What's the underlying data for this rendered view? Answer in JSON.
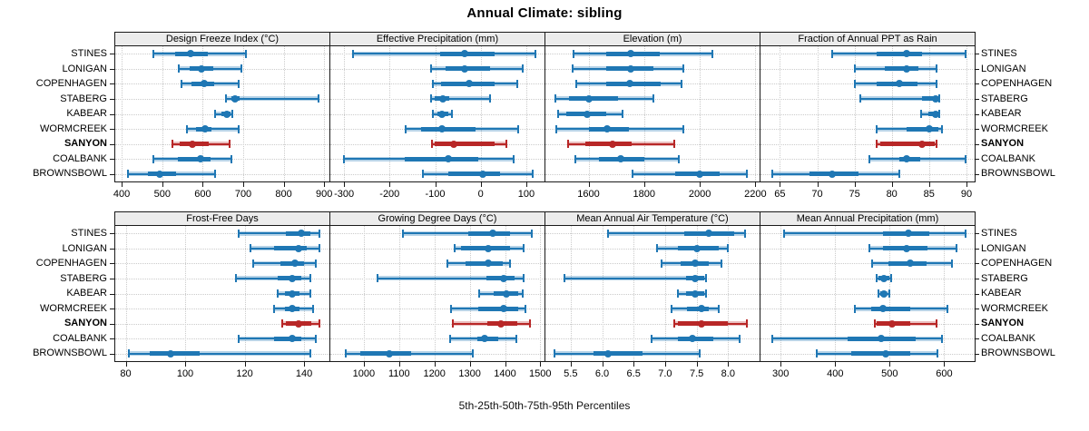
{
  "title": "Annual Climate: sibling",
  "caption": "5th-25th-50th-75th-95th Percentiles",
  "sites": [
    "STINES",
    "LONIGAN",
    "COPENHAGEN",
    "STABERG",
    "KABEAR",
    "WORMCREEK",
    "SANYON",
    "COALBANK",
    "BROWNSBOWL"
  ],
  "highlight_site": "SANYON",
  "colors": {
    "series": "#1f77b4",
    "series_band": "rgba(31,119,180,0.32)",
    "highlight": "#b82727",
    "highlight_band": "rgba(184,39,39,0.30)",
    "grid": "#cbcbcb",
    "panel_border": "#1a1a1a",
    "header_bg": "#ececec"
  },
  "chart_data": {
    "type": "dotplot-percentiles",
    "percentiles": [
      5,
      25,
      50,
      75,
      95
    ],
    "layout": {
      "rows": 2,
      "cols": 4
    },
    "note": "values = per site [p5,p25,p50,p75,p95] in site order",
    "panels": [
      {
        "title": "Design Freeze Index (°C)",
        "row": 0,
        "col": 0,
        "xlim": [
          384,
          913
        ],
        "ticks": [
          400,
          500,
          600,
          700,
          800,
          900
        ],
        "tick_labels": [
          "400",
          "500",
          "600",
          "700",
          "800",
          "900"
        ],
        "values": [
          [
            478,
            531,
            570,
            612,
            706
          ],
          [
            540,
            568,
            598,
            625,
            695
          ],
          [
            548,
            573,
            604,
            628,
            688
          ],
          [
            658,
            670,
            681,
            692,
            885
          ],
          [
            630,
            646,
            659,
            668,
            674
          ],
          [
            562,
            583,
            605,
            622,
            688
          ],
          [
            525,
            543,
            575,
            615,
            666
          ],
          [
            478,
            538,
            594,
            620,
            670
          ],
          [
            415,
            464,
            494,
            534,
            631
          ]
        ]
      },
      {
        "title": "Effective Precipitation (mm)",
        "row": 0,
        "col": 1,
        "xlim": [
          -330,
          140
        ],
        "ticks": [
          -300,
          -200,
          -100,
          0,
          100
        ],
        "tick_labels": [
          "-300",
          "-200",
          "-100",
          "0",
          "100"
        ],
        "values": [
          [
            -280,
            -90,
            -35,
            30,
            120
          ],
          [
            -108,
            -78,
            -35,
            20,
            93
          ],
          [
            -105,
            -88,
            -26,
            30,
            80
          ],
          [
            -108,
            -100,
            -83,
            -69,
            20
          ],
          [
            -105,
            -95,
            -85,
            -72,
            -63
          ],
          [
            -165,
            -130,
            -85,
            -12,
            83
          ],
          [
            -107,
            -100,
            -60,
            30,
            57
          ],
          [
            -300,
            -166,
            -71,
            -5,
            73
          ],
          [
            -127,
            -72,
            4,
            42,
            115
          ]
        ]
      },
      {
        "title": "Elevation (m)",
        "row": 0,
        "col": 2,
        "xlim": [
          1445,
          2215
        ],
        "ticks": [
          1600,
          1800,
          2000,
          2200
        ],
        "tick_labels": [
          "1600",
          "1800",
          "2000",
          "2200"
        ],
        "values": [
          [
            1546,
            1663,
            1753,
            1857,
            2044
          ],
          [
            1543,
            1663,
            1753,
            1833,
            1942
          ],
          [
            1556,
            1663,
            1749,
            1858,
            1934
          ],
          [
            1481,
            1530,
            1600,
            1707,
            1833
          ],
          [
            1492,
            1521,
            1595,
            1663,
            1721
          ],
          [
            1485,
            1603,
            1666,
            1745,
            1942
          ],
          [
            1525,
            1587,
            1685,
            1754,
            1907
          ],
          [
            1552,
            1638,
            1715,
            1800,
            1926
          ],
          [
            1758,
            1913,
            2000,
            2070,
            2168
          ]
        ]
      },
      {
        "title": "Fraction of Annual PPT as Rain",
        "row": 0,
        "col": 3,
        "xlim": [
          62.4,
          91.1
        ],
        "ticks": [
          65,
          70,
          75,
          80,
          85,
          90
        ],
        "tick_labels": [
          "65",
          "70",
          "75",
          "80",
          "85",
          "90"
        ],
        "values": [
          [
            72,
            78,
            82,
            84,
            89.9
          ],
          [
            75,
            79,
            82,
            83.5,
            86
          ],
          [
            75,
            78,
            81,
            83.5,
            86
          ],
          [
            75.8,
            84,
            85.9,
            86.2,
            86.4
          ],
          [
            83.9,
            84.9,
            85.9,
            86.2,
            86.4
          ],
          [
            78,
            82,
            85,
            86.2,
            86.7
          ],
          [
            78,
            78.5,
            84,
            85.8,
            86
          ],
          [
            77,
            81,
            82,
            83.8,
            89.9
          ],
          [
            64,
            69,
            72,
            75.5,
            81
          ]
        ]
      },
      {
        "title": "Frost-Free Days",
        "row": 1,
        "col": 0,
        "xlim": [
          76.5,
          148.5
        ],
        "ticks": [
          80,
          100,
          120,
          140
        ],
        "tick_labels": [
          "80",
          "100",
          "120",
          "140"
        ],
        "values": [
          [
            118,
            134,
            139,
            142,
            145
          ],
          [
            122,
            130,
            138,
            141,
            145
          ],
          [
            123,
            132,
            137,
            140,
            144
          ],
          [
            117,
            131,
            136,
            139,
            142
          ],
          [
            131,
            133.5,
            136,
            138.5,
            142
          ],
          [
            130,
            133.5,
            136,
            138.5,
            143
          ],
          [
            132.5,
            134,
            138,
            142.5,
            145
          ],
          [
            118,
            130,
            136,
            139,
            144
          ],
          [
            81,
            88,
            95,
            105,
            142
          ]
        ]
      },
      {
        "title": "Growing Degree Days (°C)",
        "row": 1,
        "col": 1,
        "xlim": [
          905,
          1512
        ],
        "ticks": [
          1000,
          1100,
          1200,
          1300,
          1400,
          1500
        ],
        "tick_labels": [
          "1000",
          "1100",
          "1200",
          "1300",
          "1400",
          "1500"
        ],
        "values": [
          [
            1110,
            1295,
            1365,
            1415,
            1477
          ],
          [
            1258,
            1275,
            1353,
            1414,
            1452
          ],
          [
            1236,
            1288,
            1353,
            1393,
            1414
          ],
          [
            1040,
            1347,
            1395,
            1427,
            1452
          ],
          [
            1328,
            1368,
            1403,
            1437,
            1449
          ],
          [
            1248,
            1323,
            1397,
            1437,
            1458
          ],
          [
            1252,
            1350,
            1389,
            1435,
            1470
          ],
          [
            1245,
            1322,
            1343,
            1381,
            1431
          ],
          [
            950,
            990,
            1073,
            1134,
            1310
          ]
        ]
      },
      {
        "title": "Mean Annual Air Temperature (°C)",
        "row": 1,
        "col": 2,
        "xlim": [
          5.1,
          8.5
        ],
        "ticks": [
          5.5,
          6.0,
          6.5,
          7.0,
          7.5,
          8.0
        ],
        "tick_labels": [
          "5.5",
          "6.0",
          "6.5",
          "7.0",
          "7.5",
          "8.0"
        ],
        "values": [
          [
            6.1,
            7.3,
            7.7,
            8.1,
            8.27
          ],
          [
            6.87,
            7.2,
            7.5,
            7.85,
            8.0
          ],
          [
            6.95,
            7.25,
            7.47,
            7.7,
            7.9
          ],
          [
            5.4,
            7.33,
            7.48,
            7.62,
            7.65
          ],
          [
            7.2,
            7.34,
            7.48,
            7.62,
            7.65
          ],
          [
            7.1,
            7.35,
            7.58,
            7.7,
            7.85
          ],
          [
            7.15,
            7.2,
            7.58,
            8.0,
            8.3
          ],
          [
            6.78,
            7.2,
            7.44,
            7.76,
            8.18
          ],
          [
            5.25,
            5.87,
            6.1,
            6.64,
            7.55
          ]
        ]
      },
      {
        "title": "Mean Annual Precipitation (mm)",
        "row": 1,
        "col": 3,
        "xlim": [
          263,
          656
        ],
        "ticks": [
          300,
          400,
          500,
          600
        ],
        "tick_labels": [
          "300",
          "400",
          "500",
          "600"
        ],
        "values": [
          [
            306,
            488,
            534,
            572,
            640
          ],
          [
            462,
            488,
            531,
            570,
            623
          ],
          [
            467,
            497,
            537,
            567,
            615
          ],
          [
            476,
            480,
            489,
            499,
            503
          ],
          [
            479,
            483,
            490,
            495,
            499
          ],
          [
            436,
            466,
            488,
            538,
            606
          ],
          [
            473,
            476,
            505,
            538,
            586
          ],
          [
            284,
            423,
            485,
            547,
            596
          ],
          [
            366,
            429,
            493,
            538,
            588
          ]
        ]
      }
    ]
  }
}
